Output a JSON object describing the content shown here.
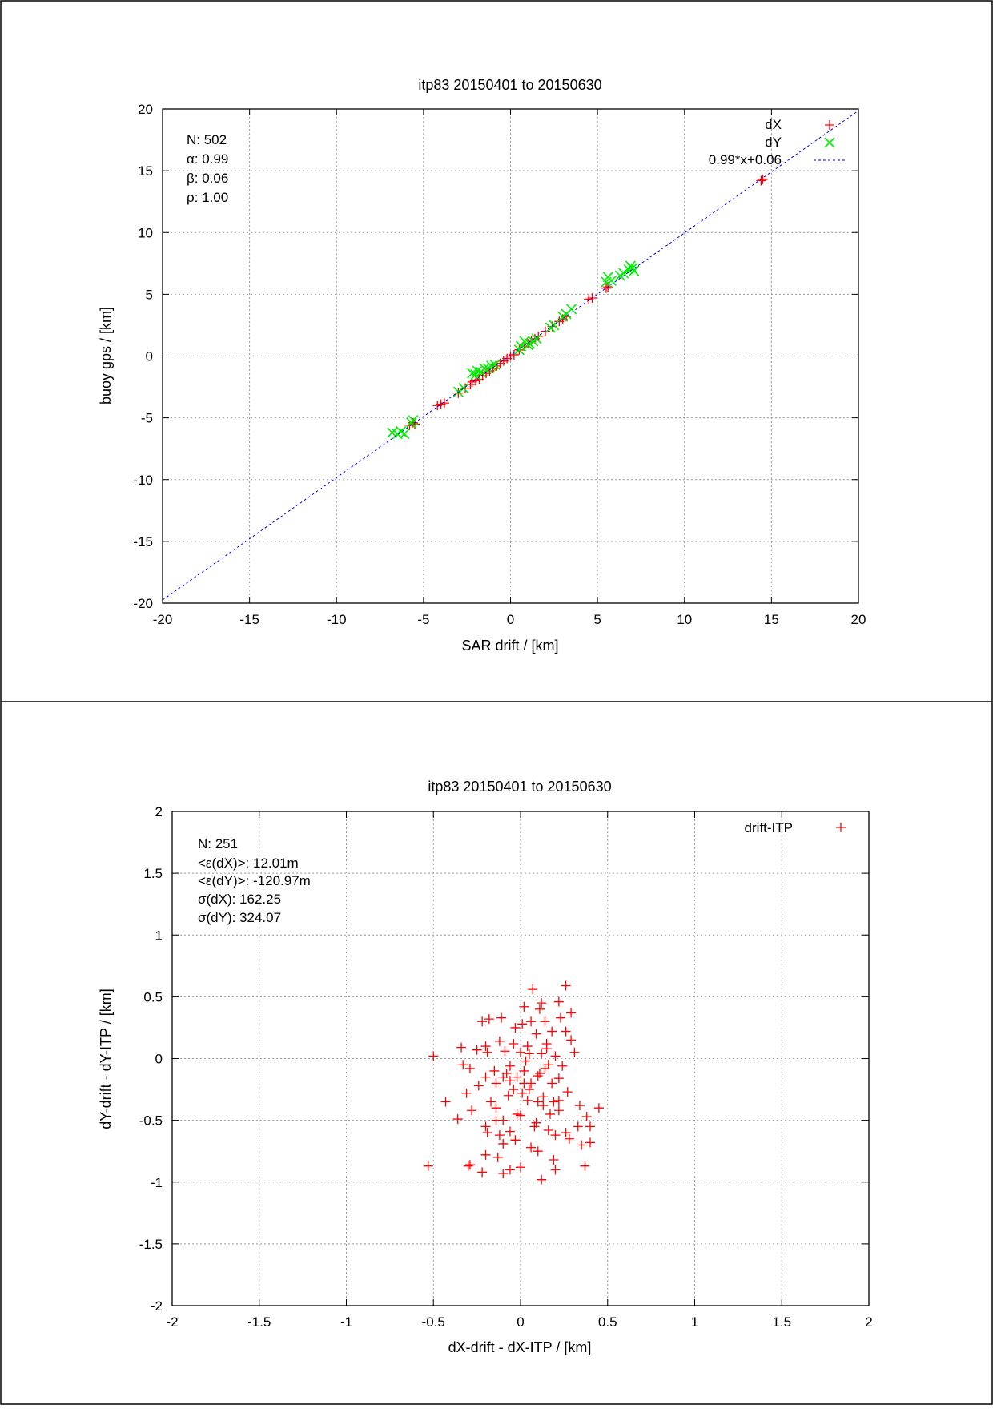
{
  "charts": [
    {
      "type": "scatter",
      "title": "itp83 20150401 to 20150630",
      "xlabel": "SAR drift / [km]",
      "ylabel": "buoy gps / [km]",
      "xlim": [
        -20,
        20
      ],
      "ylim": [
        -20,
        20
      ],
      "xticks": [
        -20,
        -15,
        -10,
        -5,
        0,
        5,
        10,
        15,
        20
      ],
      "yticks": [
        -20,
        -15,
        -10,
        -5,
        0,
        5,
        10,
        15,
        20
      ],
      "grid": true,
      "legend_position": "top-right",
      "annotations": [
        "N: 502",
        "α: 0.99",
        "β: 0.06",
        "ρ: 1.00"
      ],
      "series": [
        {
          "name": "dX",
          "marker": "plus",
          "color": "#ff0000",
          "x": [
            -5.8,
            -5.6,
            -5.5,
            -4.2,
            -4.0,
            -3.8,
            -3.0,
            -2.6,
            -2.3,
            -2.2,
            -2.0,
            -1.8,
            -1.6,
            -1.4,
            -1.2,
            -1.0,
            -0.8,
            -0.6,
            -0.4,
            -0.2,
            0.0,
            0.2,
            0.5,
            0.8,
            1.0,
            1.2,
            1.4,
            1.6,
            2.0,
            2.4,
            2.8,
            3.0,
            3.2,
            4.5,
            4.7,
            5.5,
            5.6,
            14.4,
            14.5
          ],
          "y": [
            -5.6,
            -5.4,
            -5.5,
            -4.0,
            -3.9,
            -3.8,
            -3.0,
            -2.6,
            -2.3,
            -2.1,
            -2.0,
            -1.9,
            -1.6,
            -1.4,
            -1.2,
            -1.0,
            -0.8,
            -0.6,
            -0.4,
            -0.2,
            0.0,
            0.1,
            0.5,
            0.8,
            1.0,
            1.2,
            1.4,
            1.6,
            2.0,
            2.4,
            2.8,
            3.0,
            3.2,
            4.6,
            4.7,
            5.5,
            5.6,
            14.2,
            14.3
          ]
        },
        {
          "name": "dY",
          "marker": "cross",
          "color": "#00ee00",
          "x": [
            -6.8,
            -6.5,
            -6.3,
            -6.1,
            -5.7,
            -5.6,
            -3.0,
            -2.7,
            -2.2,
            -2.0,
            -1.9,
            -1.7,
            -1.5,
            -1.3,
            -1.1,
            -0.9,
            0.5,
            0.6,
            0.8,
            1.0,
            1.1,
            1.3,
            1.5,
            2.3,
            2.5,
            3.0,
            3.2,
            3.5,
            5.5,
            5.6,
            5.8,
            6.3,
            6.5,
            6.8,
            6.9,
            7.0,
            7.1
          ],
          "y": [
            -6.2,
            -6.3,
            -6.1,
            -6.3,
            -5.4,
            -5.2,
            -2.9,
            -2.6,
            -1.4,
            -1.5,
            -1.2,
            -1.3,
            -1.0,
            -1.0,
            -0.8,
            -0.7,
            0.5,
            0.8,
            1.2,
            0.9,
            1.0,
            1.2,
            1.4,
            2.3,
            2.5,
            3.2,
            3.4,
            3.8,
            6.0,
            6.4,
            6.1,
            6.5,
            6.7,
            7.0,
            7.3,
            7.1,
            6.9
          ]
        },
        {
          "name": "0.99*x+0.06",
          "type": "line",
          "style": "dashed",
          "color": "#0000ff",
          "slope": 0.99,
          "intercept": 0.06
        }
      ]
    },
    {
      "type": "scatter",
      "title": "itp83 20150401 to 20150630",
      "xlabel": "dX-drift - dX-ITP / [km]",
      "ylabel": "dY-drift - dY-ITP / [km]",
      "xlim": [
        -2,
        2
      ],
      "ylim": [
        -2,
        2
      ],
      "xticks": [
        -2,
        -1.5,
        -1,
        -0.5,
        0,
        0.5,
        1,
        1.5,
        2
      ],
      "yticks": [
        -2,
        -1.5,
        -1,
        -0.5,
        0,
        0.5,
        1,
        1.5,
        2
      ],
      "grid": true,
      "legend_position": "top-right",
      "annotations": [
        "N: 251",
        "<ε(dX)>:  12.01m",
        "<ε(dY)>: -120.97m",
        "σ(dX):  162.25",
        "σ(dY):  324.07"
      ],
      "series": [
        {
          "name": "drift-ITP",
          "marker": "plus",
          "color": "#ff0000",
          "x": [
            0.26,
            0.07,
            0.22,
            0.29,
            0.12,
            0.11,
            0.23,
            0.02,
            -0.11,
            -0.22,
            -0.18,
            0.14,
            0.01,
            0.06,
            -0.03,
            0.18,
            0.09,
            0.26,
            -0.34,
            -0.12,
            -0.04,
            0.04,
            0.15,
            0.29,
            -0.5,
            -0.25,
            -0.19,
            -0.09,
            0.0,
            0.05,
            0.12,
            0.2,
            0.31,
            -0.33,
            -0.29,
            -0.15,
            -0.06,
            0.03,
            0.16,
            0.24,
            -0.2,
            -0.08,
            0.02,
            0.11,
            -0.43,
            -0.31,
            -0.24,
            -0.14,
            -0.02,
            0.06,
            0.1,
            0.18,
            0.27,
            0.34,
            0.45,
            -0.36,
            -0.28,
            -0.17,
            -0.07,
            0.04,
            0.13,
            0.22,
            -0.2,
            -0.1,
            0.0,
            0.09,
            0.17,
            0.38,
            -0.19,
            -0.12,
            0.08,
            0.16,
            0.26,
            0.33,
            -0.1,
            -0.03,
            0.06,
            0.2,
            0.28,
            0.4,
            -0.2,
            -0.13,
            -0.06,
            0.1,
            0.19,
            -0.22,
            0.0,
            0.35,
            0.37,
            -0.1,
            0.12,
            0.2,
            -0.29,
            -0.14,
            -0.04,
            0.01,
            0.1,
            -0.53,
            -0.3,
            -0.02,
            0.22,
            0.4,
            -0.14,
            -0.06,
            0.02,
            0.13,
            -0.2,
            0.19,
            -0.06,
            0.05,
            0.15,
            -0.1,
            0.22,
            0.14
          ],
          "y": [
            0.59,
            0.56,
            0.46,
            0.37,
            0.45,
            0.4,
            0.33,
            0.42,
            0.33,
            0.3,
            0.32,
            0.3,
            0.28,
            0.3,
            0.25,
            0.22,
            0.2,
            0.22,
            0.09,
            0.14,
            0.12,
            0.1,
            0.12,
            0.15,
            0.02,
            0.07,
            0.05,
            0.06,
            0.05,
            0.04,
            0.04,
            0.02,
            0.05,
            -0.05,
            -0.08,
            -0.1,
            -0.06,
            -0.02,
            -0.05,
            -0.06,
            -0.15,
            -0.12,
            -0.1,
            -0.12,
            -0.35,
            -0.28,
            -0.22,
            -0.2,
            -0.15,
            -0.2,
            -0.14,
            -0.2,
            -0.27,
            -0.38,
            -0.4,
            -0.49,
            -0.42,
            -0.35,
            -0.3,
            -0.34,
            -0.38,
            -0.42,
            -0.55,
            -0.5,
            -0.46,
            -0.52,
            -0.45,
            -0.47,
            -0.6,
            -0.62,
            -0.55,
            -0.58,
            -0.6,
            -0.55,
            -0.69,
            -0.66,
            -0.72,
            -0.62,
            -0.65,
            -0.68,
            -0.78,
            -0.8,
            -0.9,
            -0.75,
            -0.82,
            -0.92,
            -0.88,
            -0.7,
            -0.87,
            -0.93,
            -0.98,
            -0.9,
            -0.86,
            -0.4,
            -0.25,
            -0.28,
            -0.35,
            -0.87,
            -0.87,
            -0.45,
            -0.34,
            -0.55,
            -0.5,
            -0.59,
            -0.2,
            -0.31,
            0.1,
            -0.35,
            -0.18,
            -0.25,
            0.08,
            -0.15,
            -0.16,
            -0.08
          ]
        }
      ]
    }
  ]
}
